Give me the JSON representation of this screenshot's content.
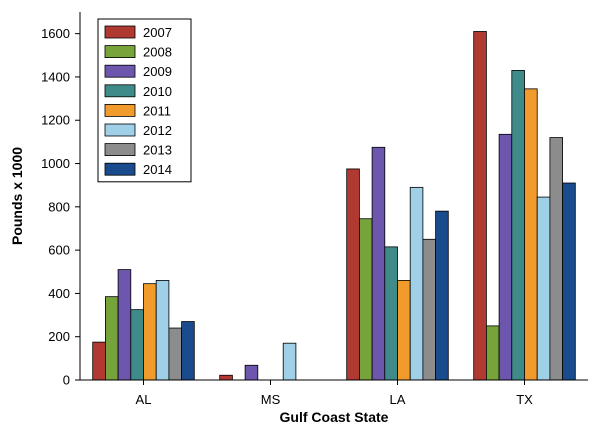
{
  "chart_data": {
    "type": "bar",
    "title": "",
    "xlabel": "Gulf Coast State",
    "ylabel": "Pounds x 1000",
    "categories": [
      "AL",
      "MS",
      "LA",
      "TX"
    ],
    "ylim": [
      0,
      1700
    ],
    "yticks": [
      0,
      200,
      400,
      600,
      800,
      1000,
      1200,
      1400,
      1600
    ],
    "grid": false,
    "legend_position": "top-left",
    "series": [
      {
        "name": "2007",
        "color": "#b03a32",
        "values": [
          175,
          22,
          975,
          1610
        ]
      },
      {
        "name": "2008",
        "color": "#76a33a",
        "values": [
          385,
          0,
          745,
          250
        ]
      },
      {
        "name": "2009",
        "color": "#6d56ad",
        "values": [
          510,
          68,
          1075,
          1135
        ]
      },
      {
        "name": "2010",
        "color": "#3f8b89",
        "values": [
          325,
          0,
          615,
          1430
        ]
      },
      {
        "name": "2011",
        "color": "#f29b2d",
        "values": [
          445,
          0,
          460,
          1345
        ]
      },
      {
        "name": "2012",
        "color": "#9fd0e8",
        "values": [
          460,
          170,
          890,
          845
        ]
      },
      {
        "name": "2013",
        "color": "#8c8c8c",
        "values": [
          240,
          0,
          650,
          1120
        ]
      },
      {
        "name": "2014",
        "color": "#1a4b8c",
        "values": [
          270,
          0,
          780,
          910
        ]
      }
    ]
  }
}
